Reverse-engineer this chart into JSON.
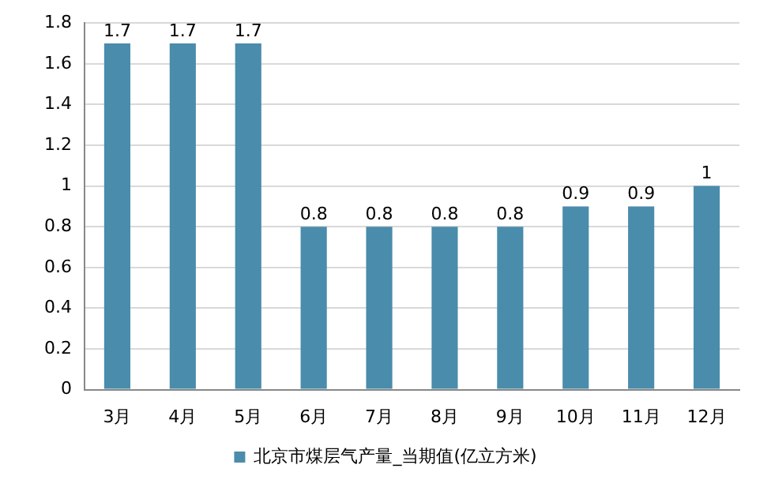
{
  "chart_data": {
    "type": "bar",
    "categories": [
      "3月",
      "4月",
      "5月",
      "6月",
      "7月",
      "8月",
      "9月",
      "10月",
      "11月",
      "12月"
    ],
    "series": [
      {
        "name": "北京市煤层气产量_当期值(亿立方米)",
        "color": "#4a8cab",
        "values": [
          1.7,
          1.7,
          1.7,
          0.8,
          0.8,
          0.8,
          0.8,
          0.9,
          0.9,
          1
        ]
      }
    ],
    "ylim": [
      0,
      1.8
    ],
    "yticks": [
      0,
      0.2,
      0.4,
      0.6,
      0.8,
      1,
      1.2,
      1.4,
      1.6,
      1.8
    ],
    "grid": "y",
    "legend": "bottom",
    "data_labels": true
  }
}
